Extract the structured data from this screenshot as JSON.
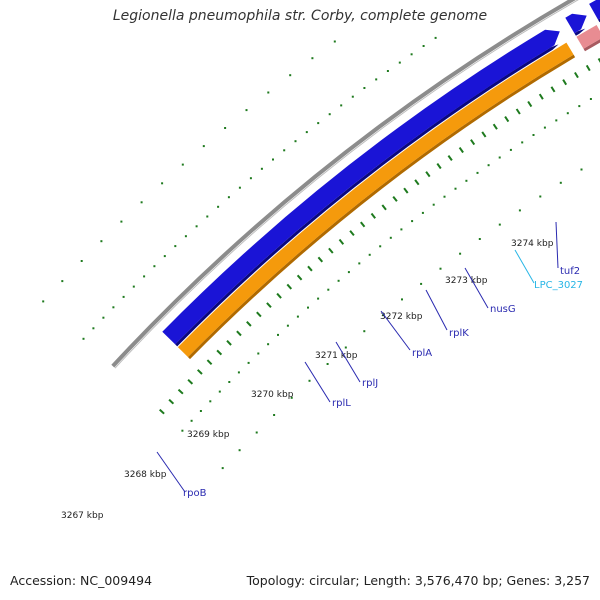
{
  "title": "Legionella pneumophila str. Corby, complete genome",
  "footer": {
    "accession": "Accession: NC_009494",
    "summary": "Topology: circular; Length: 3,576,470 bp; Genes: 3,257"
  },
  "colors": {
    "backbone": "#8c8c8c",
    "forward_cds": "#1a14d6",
    "forward_cds_shadow": "#0b0880",
    "forward_rrna_tint": "#e88c92",
    "reverse_track": "#f59a0c",
    "reverse_track_shadow": "#b06a00",
    "tick": "#1e7a1e",
    "gene_label": "#2a2ab0",
    "gene_label_alt": "#29b6e6"
  },
  "ticks": [
    {
      "label": "3267 kbp"
    },
    {
      "label": "3268 kbp"
    },
    {
      "label": "3269 kbp"
    },
    {
      "label": "3270 kbp"
    },
    {
      "label": "3271 kbp"
    },
    {
      "label": "3272 kbp"
    },
    {
      "label": "3273 kbp"
    },
    {
      "label": "3274 kbp"
    }
  ],
  "genes": [
    {
      "name": "rpoB",
      "color_key": "gene_label"
    },
    {
      "name": "rplL",
      "color_key": "gene_label"
    },
    {
      "name": "rplJ",
      "color_key": "gene_label"
    },
    {
      "name": "rplA",
      "color_key": "gene_label"
    },
    {
      "name": "rplK",
      "color_key": "gene_label"
    },
    {
      "name": "nusG",
      "color_key": "gene_label"
    },
    {
      "name": "LPC_3027",
      "color_key": "gene_label_alt"
    },
    {
      "name": "tuf2",
      "color_key": "gene_label"
    }
  ]
}
